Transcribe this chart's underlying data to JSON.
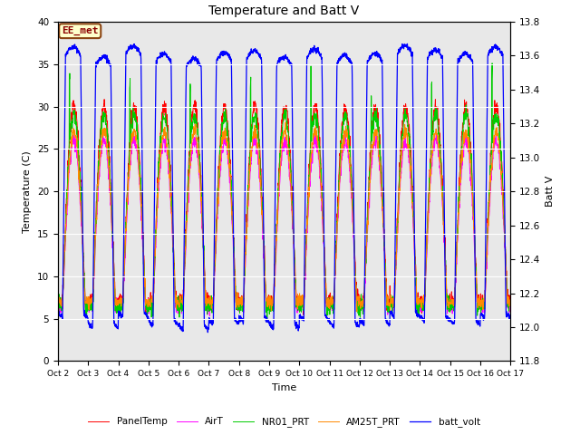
{
  "title": "Temperature and Batt V",
  "xlabel": "Time",
  "ylabel_left": "Temperature (C)",
  "ylabel_right": "Batt V",
  "annotation": "EE_met",
  "ylim_left": [
    0,
    40
  ],
  "ylim_right": [
    11.8,
    13.8
  ],
  "xtick_labels": [
    "Oct 2",
    "Oct 3",
    "Oct 4",
    "Oct 5",
    "Oct 6",
    "Oct 7",
    "Oct 8",
    "Oct 9",
    "Oct 10",
    "Oct 11",
    "Oct 12",
    "Oct 13",
    "Oct 14",
    "Oct 15",
    "Oct 16",
    "Oct 17"
  ],
  "yticks_left": [
    0,
    5,
    10,
    15,
    20,
    25,
    30,
    35,
    40
  ],
  "yticks_right": [
    11.8,
    12.0,
    12.2,
    12.4,
    12.6,
    12.8,
    13.0,
    13.2,
    13.4,
    13.6,
    13.8
  ],
  "colors": {
    "PanelTemp": "#ff0000",
    "AirT": "#ff00ff",
    "NR01_PRT": "#00cc00",
    "AM25T_PRT": "#ff8800",
    "batt_volt": "#0000ff"
  },
  "legend_entries": [
    "PanelTemp",
    "AirT",
    "NR01_PRT",
    "AM25T_PRT",
    "batt_volt"
  ],
  "bg_color": "#e8e8e8",
  "fig_bg": "#ffffff",
  "n_days": 15,
  "pts_per_day": 144
}
